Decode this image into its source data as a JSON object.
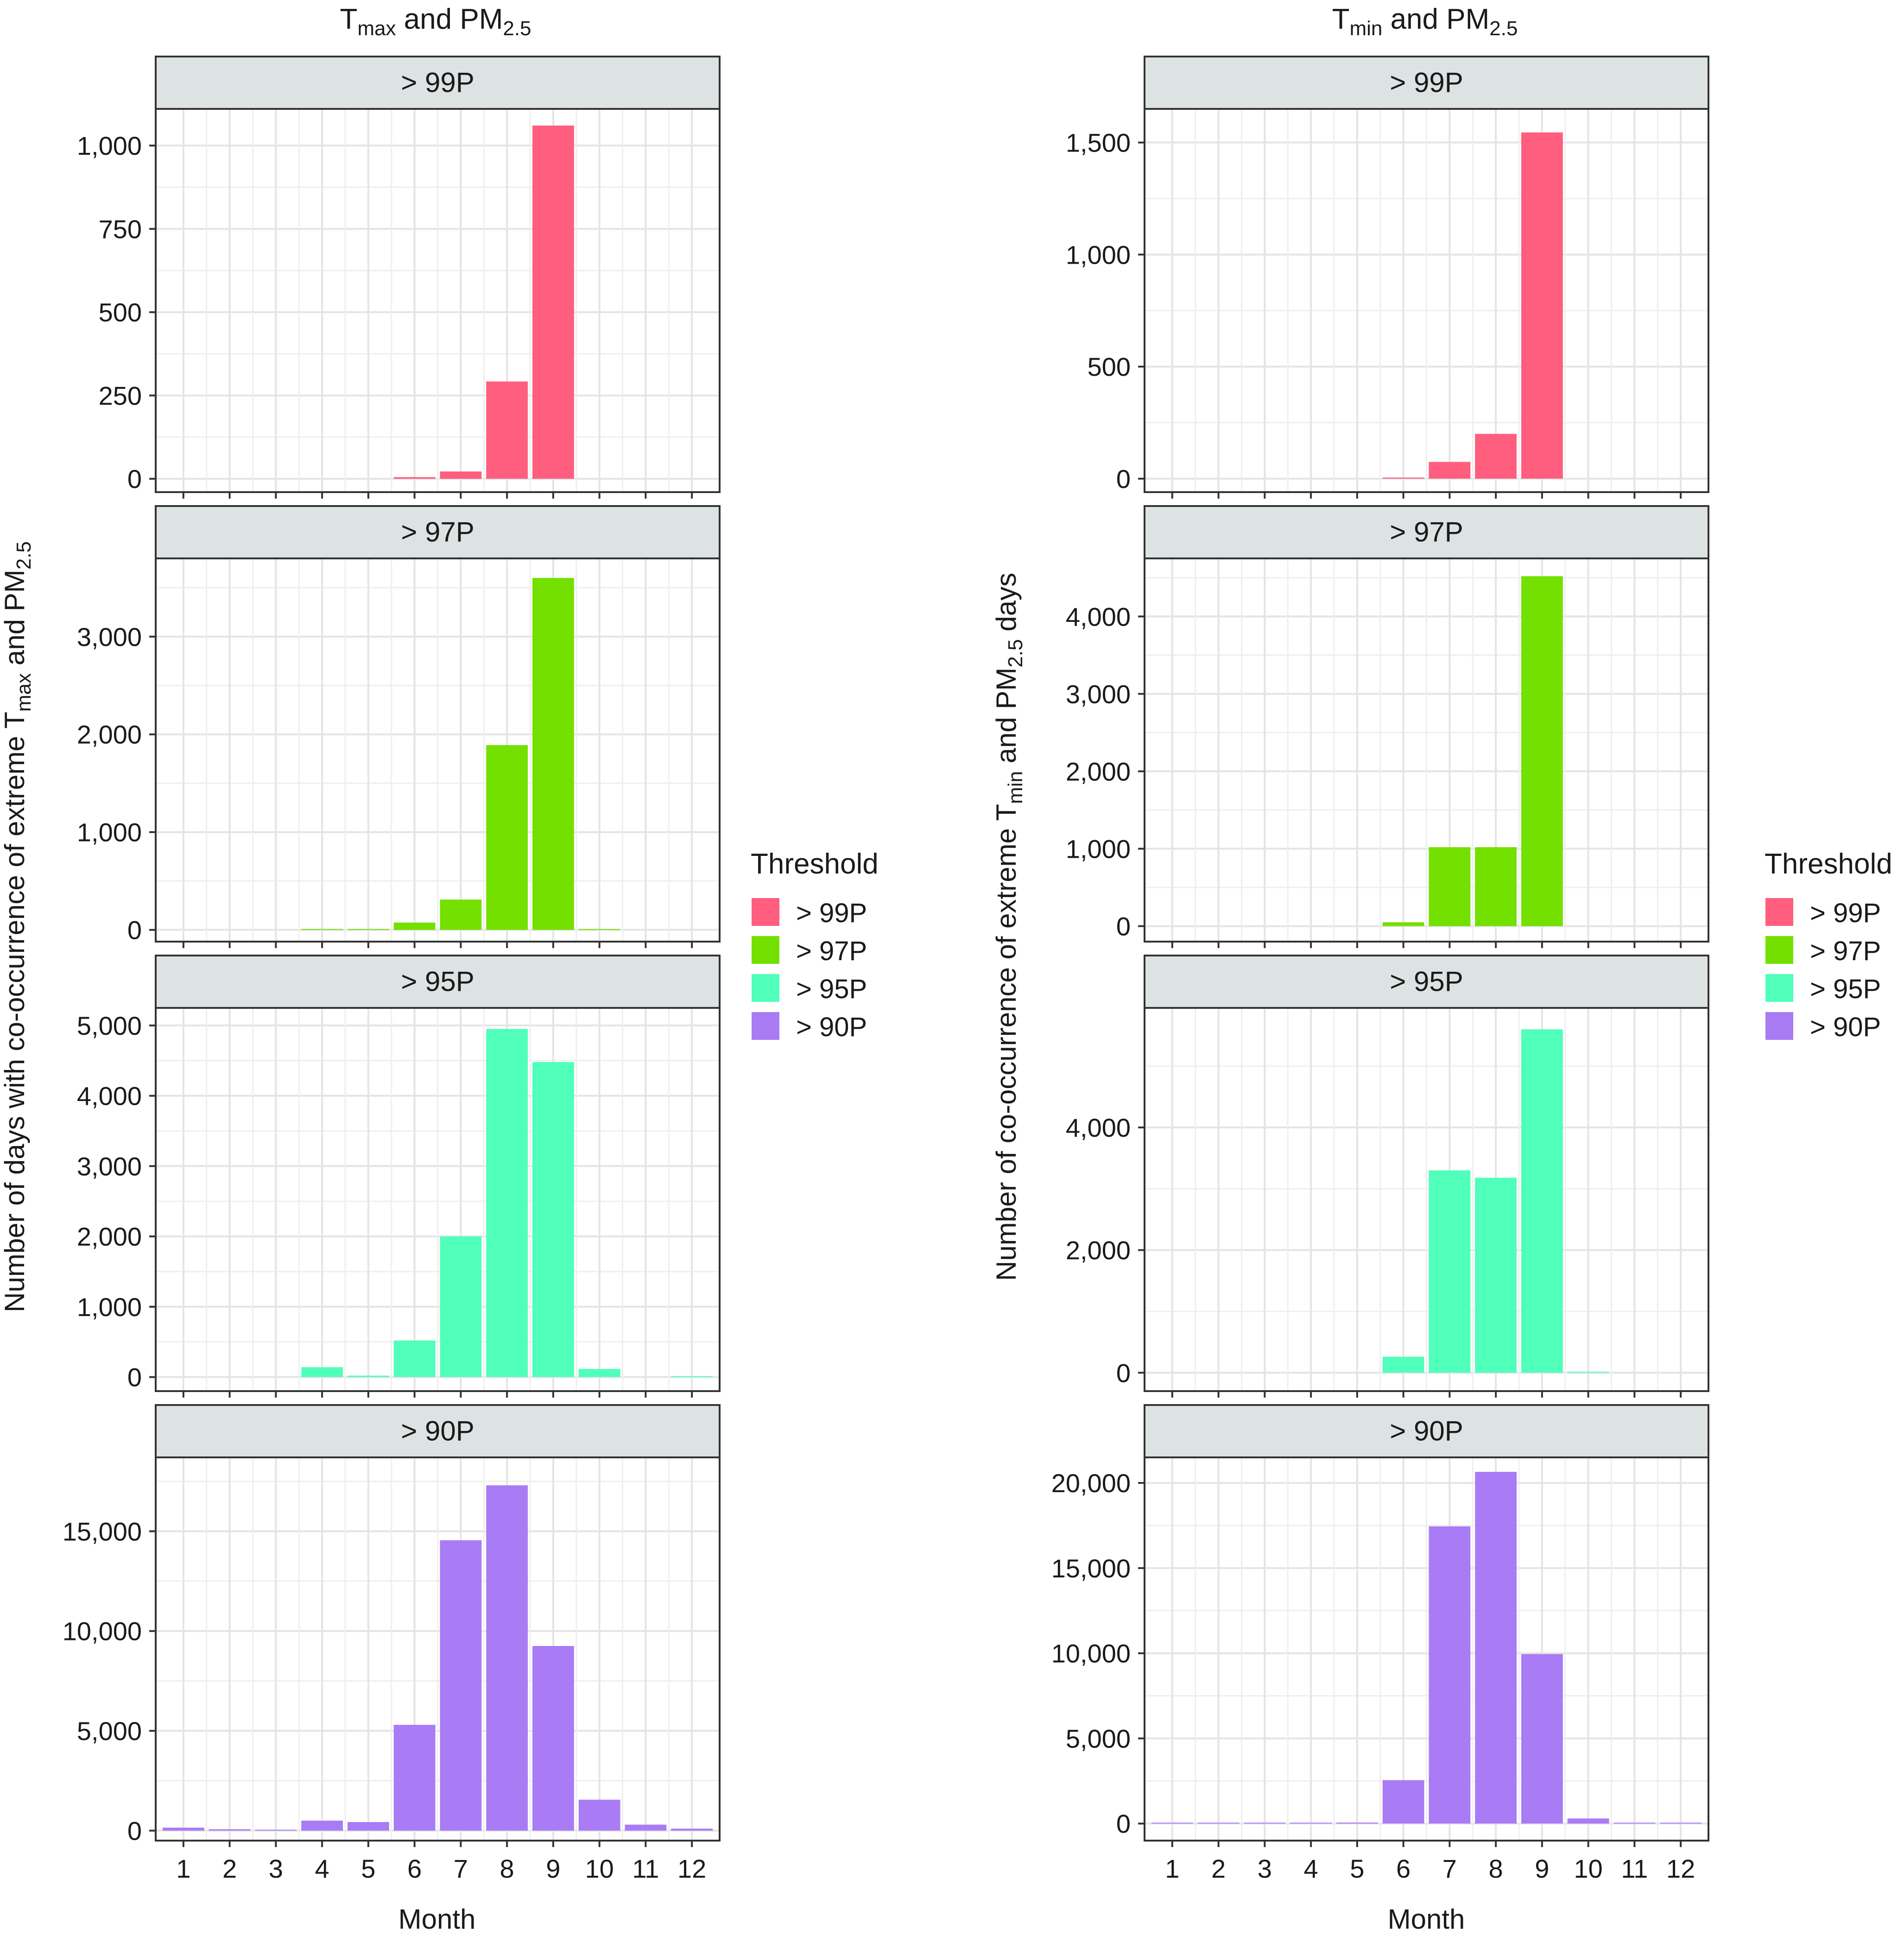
{
  "chart_data": [
    {
      "type": "bar",
      "column": "left",
      "title": {
        "base": "T",
        "sub": "max",
        "mid": " and PM",
        "sub2": "2.5"
      },
      "xlabel": "Month",
      "ylabel": {
        "part1": "Number of days with co-occurrence of extreme T",
        "sub1": "max",
        "part2": " and PM",
        "sub2": "2.5"
      },
      "categories": [
        "1",
        "2",
        "3",
        "4",
        "5",
        "6",
        "7",
        "8",
        "9",
        "10",
        "11",
        "12"
      ],
      "panels": [
        {
          "label": "> 99P",
          "series": "> 99P",
          "ylim": [
            -40,
            1110
          ],
          "ticks": [
            0,
            250,
            500,
            750,
            1000
          ],
          "tick_labels": [
            "0",
            "250",
            "500",
            "750",
            "1,000"
          ],
          "values": [
            0,
            0,
            0,
            0,
            0,
            5,
            22,
            292,
            1060,
            0,
            0,
            0
          ]
        },
        {
          "label": "> 97P",
          "series": "> 97P",
          "ylim": [
            -120,
            3800
          ],
          "ticks": [
            0,
            1000,
            2000,
            3000
          ],
          "tick_labels": [
            "0",
            "1,000",
            "2,000",
            "3,000"
          ],
          "values": [
            0,
            0,
            0,
            5,
            5,
            75,
            310,
            1890,
            3600,
            8,
            0,
            0
          ]
        },
        {
          "label": "> 95P",
          "series": "> 95P",
          "ylim": [
            -200,
            5250
          ],
          "ticks": [
            0,
            1000,
            2000,
            3000,
            4000,
            5000
          ],
          "tick_labels": [
            "0",
            "1,000",
            "2,000",
            "3,000",
            "4,000",
            "5,000"
          ],
          "values": [
            0,
            0,
            0,
            140,
            20,
            520,
            2000,
            4950,
            4480,
            115,
            0,
            10
          ]
        },
        {
          "label": "> 90P",
          "series": "> 90P",
          "ylim": [
            -500,
            18700
          ],
          "ticks": [
            0,
            5000,
            10000,
            15000
          ],
          "tick_labels": [
            "0",
            "5,000",
            "10,000",
            "15,000"
          ],
          "values": [
            150,
            70,
            20,
            500,
            430,
            5300,
            14550,
            17300,
            9250,
            1550,
            300,
            100
          ]
        }
      ]
    },
    {
      "type": "bar",
      "column": "right",
      "title": {
        "base": "T",
        "sub": "min",
        "mid": " and PM",
        "sub2": "2.5"
      },
      "xlabel": "Month",
      "ylabel": {
        "part1": "Number of co-occurrence of extreme T",
        "sub1": "min",
        "part2": " and PM",
        "sub2": "2.5",
        "part3": " days"
      },
      "categories": [
        "1",
        "2",
        "3",
        "4",
        "5",
        "6",
        "7",
        "8",
        "9",
        "10",
        "11",
        "12"
      ],
      "panels": [
        {
          "label": "> 99P",
          "series": "> 99P",
          "ylim": [
            -60,
            1650
          ],
          "ticks": [
            0,
            500,
            1000,
            1500
          ],
          "tick_labels": [
            "0",
            "500",
            "1,000",
            "1,500"
          ],
          "values": [
            0,
            0,
            0,
            0,
            0,
            5,
            75,
            200,
            1545,
            0,
            0,
            0
          ]
        },
        {
          "label": "> 97P",
          "series": "> 97P",
          "ylim": [
            -200,
            4750
          ],
          "ticks": [
            0,
            1000,
            2000,
            3000,
            4000
          ],
          "tick_labels": [
            "0",
            "1,000",
            "2,000",
            "3,000",
            "4,000"
          ],
          "values": [
            0,
            0,
            0,
            0,
            0,
            50,
            1020,
            1020,
            4520,
            0,
            0,
            0
          ]
        },
        {
          "label": "> 95P",
          "series": "> 95P",
          "ylim": [
            -300,
            5950
          ],
          "ticks": [
            0,
            2000,
            4000
          ],
          "tick_labels": [
            "0",
            "2,000",
            "4,000"
          ],
          "values": [
            0,
            0,
            0,
            0,
            0,
            260,
            3300,
            3180,
            5600,
            10,
            0,
            0
          ]
        },
        {
          "label": "> 90P",
          "series": "> 90P",
          "ylim": [
            -1000,
            21500
          ],
          "ticks": [
            0,
            5000,
            10000,
            15000,
            20000
          ],
          "tick_labels": [
            "0",
            "5,000",
            "10,000",
            "15,000",
            "20,000"
          ],
          "values": [
            10,
            10,
            10,
            15,
            60,
            2550,
            17450,
            20650,
            9950,
            300,
            50,
            30
          ]
        }
      ]
    }
  ],
  "legend": {
    "title": "Threshold",
    "items": [
      {
        "label": "> 99P",
        "color": "#FF5E7E"
      },
      {
        "label": "> 97P",
        "color": "#73E000"
      },
      {
        "label": "> 95P",
        "color": "#4FFFBA"
      },
      {
        "label": "> 90P",
        "color": "#A97BF5"
      }
    ]
  }
}
